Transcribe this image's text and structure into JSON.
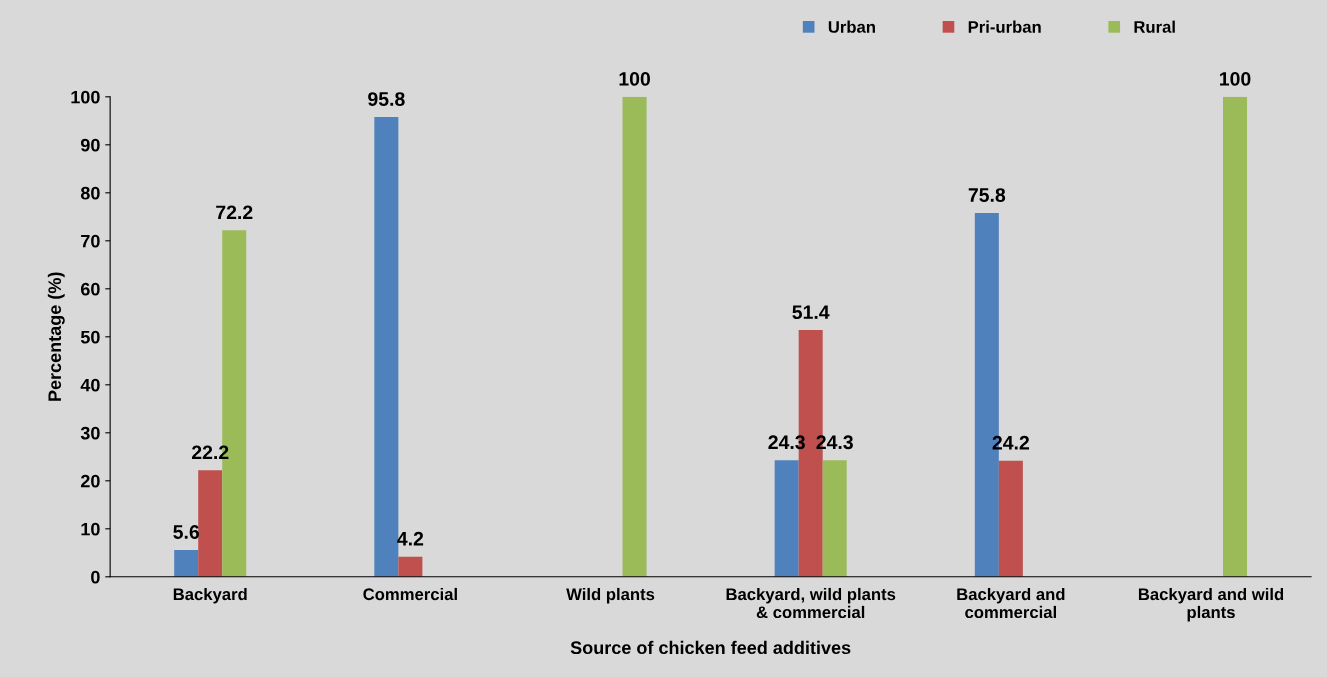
{
  "chart_data": {
    "type": "bar",
    "xlabel": "Source of chicken feed additives",
    "ylabel": "Percentage (%)",
    "categories": [
      "Backyard",
      "Commercial",
      "Wild plants",
      "Backyard, wild plants\n& commercial",
      "Backyard and\ncommercial",
      "Backyard and wild\nplants"
    ],
    "series": [
      {
        "name": "Urban",
        "color": "#4f81bd",
        "values": [
          5.6,
          95.8,
          null,
          24.3,
          75.8,
          null
        ]
      },
      {
        "name": "Pri-urban",
        "color": "#c0504d",
        "values": [
          22.2,
          4.2,
          null,
          51.4,
          24.2,
          null
        ]
      },
      {
        "name": "Rural",
        "color": "#9bbb59",
        "values": [
          72.2,
          null,
          100,
          24.3,
          null,
          100
        ]
      }
    ],
    "ylim": [
      0,
      100
    ],
    "yticks": [
      0,
      10,
      20,
      30,
      40,
      50,
      60,
      70,
      80,
      90,
      100
    ],
    "data_labels": true,
    "legend": "top right",
    "grid": false
  }
}
